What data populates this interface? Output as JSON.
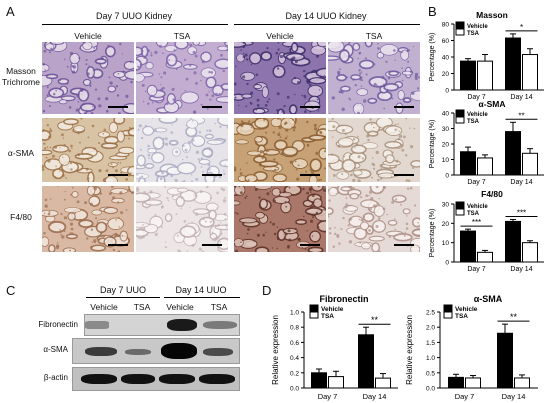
{
  "panel_labels": {
    "a": "A",
    "b": "B",
    "c": "C",
    "d": "D"
  },
  "panelA": {
    "groups": [
      "Day 7 UUO Kidney",
      "Day 14 UUO Kidney"
    ],
    "columns": [
      "Vehicle",
      "TSA",
      "Vehicle",
      "TSA"
    ],
    "rows": [
      "Masson\nTrichrome",
      "α-SMA",
      "F4/80"
    ]
  },
  "panelC": {
    "groups": [
      "Day 7 UUO",
      "Day 14 UUO"
    ],
    "columns": [
      "Vehicle",
      "TSA",
      "Vehicle",
      "TSA"
    ],
    "rows": [
      "Fibronectin",
      "α-SMA",
      "β-actin"
    ]
  },
  "chart_data": [
    {
      "type": "bar",
      "title": "Masson",
      "ylabel": "Percentage (%)",
      "categories": [
        "Day 7",
        "Day 14"
      ],
      "ylim": [
        0,
        80
      ],
      "yticks": [
        0,
        20,
        40,
        60,
        80
      ],
      "series": [
        {
          "name": "Vehicle",
          "color": "#000000",
          "values": [
            35,
            63
          ],
          "errors": [
            3,
            5
          ]
        },
        {
          "name": "TSA",
          "color": "#ffffff",
          "values": [
            35,
            43
          ],
          "errors": [
            8,
            7
          ]
        }
      ],
      "significance": [
        "",
        "*"
      ]
    },
    {
      "type": "bar",
      "title": "α-SMA",
      "ylabel": "Percentage (%)",
      "categories": [
        "Day 7",
        "Day 14"
      ],
      "ylim": [
        0,
        40
      ],
      "yticks": [
        0,
        10,
        20,
        30,
        40
      ],
      "series": [
        {
          "name": "Vehicle",
          "color": "#000000",
          "values": [
            15,
            28
          ],
          "errors": [
            3,
            6
          ]
        },
        {
          "name": "TSA",
          "color": "#ffffff",
          "values": [
            11,
            14
          ],
          "errors": [
            2,
            3
          ]
        }
      ],
      "significance": [
        "",
        "**"
      ]
    },
    {
      "type": "bar",
      "title": "F4/80",
      "ylabel": "Percentage (%)",
      "categories": [
        "Day 7",
        "Day 14"
      ],
      "ylim": [
        0,
        30
      ],
      "yticks": [
        0,
        10,
        20,
        30
      ],
      "series": [
        {
          "name": "Vehicle",
          "color": "#000000",
          "values": [
            16,
            21
          ],
          "errors": [
            1,
            1
          ]
        },
        {
          "name": "TSA",
          "color": "#ffffff",
          "values": [
            5,
            10
          ],
          "errors": [
            1,
            1
          ]
        }
      ],
      "significance": [
        "***",
        "***"
      ]
    },
    {
      "type": "bar",
      "title": "Fibronectin",
      "ylabel": "Relative expression",
      "categories": [
        "Day 7",
        "Day 14"
      ],
      "ylim": [
        0,
        1.0
      ],
      "yticks": [
        0.0,
        0.2,
        0.4,
        0.6,
        0.8,
        1.0
      ],
      "series": [
        {
          "name": "Vehicle",
          "color": "#000000",
          "values": [
            0.2,
            0.7
          ],
          "errors": [
            0.05,
            0.1
          ]
        },
        {
          "name": "TSA",
          "color": "#ffffff",
          "values": [
            0.15,
            0.13
          ],
          "errors": [
            0.07,
            0.06
          ]
        }
      ],
      "significance": [
        "",
        "**"
      ]
    },
    {
      "type": "bar",
      "title": "α-SMA",
      "ylabel": "Relative expression",
      "categories": [
        "Day 7",
        "Day 14"
      ],
      "ylim": [
        0,
        2.5
      ],
      "yticks": [
        0.0,
        0.5,
        1.0,
        1.5,
        2.0,
        2.5
      ],
      "series": [
        {
          "name": "Vehicle",
          "color": "#000000",
          "values": [
            0.35,
            1.8
          ],
          "errors": [
            0.1,
            0.3
          ]
        },
        {
          "name": "TSA",
          "color": "#ffffff",
          "values": [
            0.33,
            0.33
          ],
          "errors": [
            0.08,
            0.1
          ]
        }
      ],
      "significance": [
        "",
        "**"
      ]
    }
  ]
}
